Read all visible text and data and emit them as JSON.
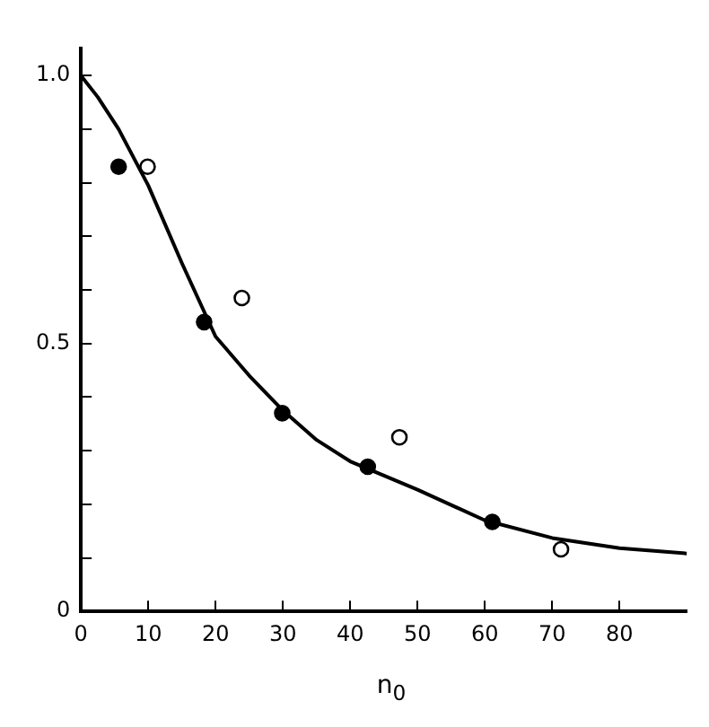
{
  "chart_data": {
    "type": "scatter",
    "xlabel": "n$_{0}$",
    "xlim": [
      0,
      90
    ],
    "xticks": [
      0,
      10,
      20,
      30,
      40,
      50,
      60,
      70,
      80
    ],
    "ylim": [
      0,
      1.05
    ],
    "yticks": [
      0,
      {
        "value": 0.1,
        "label": null
      },
      {
        "value": 0.2,
        "label": null
      },
      {
        "value": 0.3,
        "label": null
      },
      {
        "value": 0.4,
        "label": null
      },
      0.5,
      {
        "value": 0.6,
        "label": null
      },
      {
        "value": 0.7,
        "label": null
      },
      {
        "value": 0.8,
        "label": null
      },
      {
        "value": 0.9,
        "label": null
      },
      {
        "value": 1.0,
        "label": "1.0"
      }
    ],
    "grid": false,
    "legend": false,
    "series": [
      {
        "type": "line",
        "color": "#000000",
        "marker": "none",
        "x": [
          0,
          2.5,
          5.6,
          10,
          15,
          20,
          25,
          30,
          35,
          40,
          50,
          60,
          70,
          80,
          90
        ],
        "values": [
          1.0,
          0.96,
          0.9,
          0.795,
          0.65,
          0.513,
          0.44,
          0.375,
          0.32,
          0.28,
          0.227,
          0.17,
          0.137,
          0.118,
          0.108
        ]
      },
      {
        "color": "#000000",
        "marker": "circle",
        "x": [
          5.6,
          18.3,
          29.9,
          42.6,
          61.1
        ],
        "values": [
          0.83,
          0.54,
          0.37,
          0.27,
          0.167
        ]
      },
      {
        "color": "#000000",
        "marker": "circle",
        "x": [
          9.9,
          23.9,
          47.3,
          71.3
        ],
        "values": [
          0.83,
          0.585,
          0.325,
          0.116
        ]
      }
    ]
  }
}
